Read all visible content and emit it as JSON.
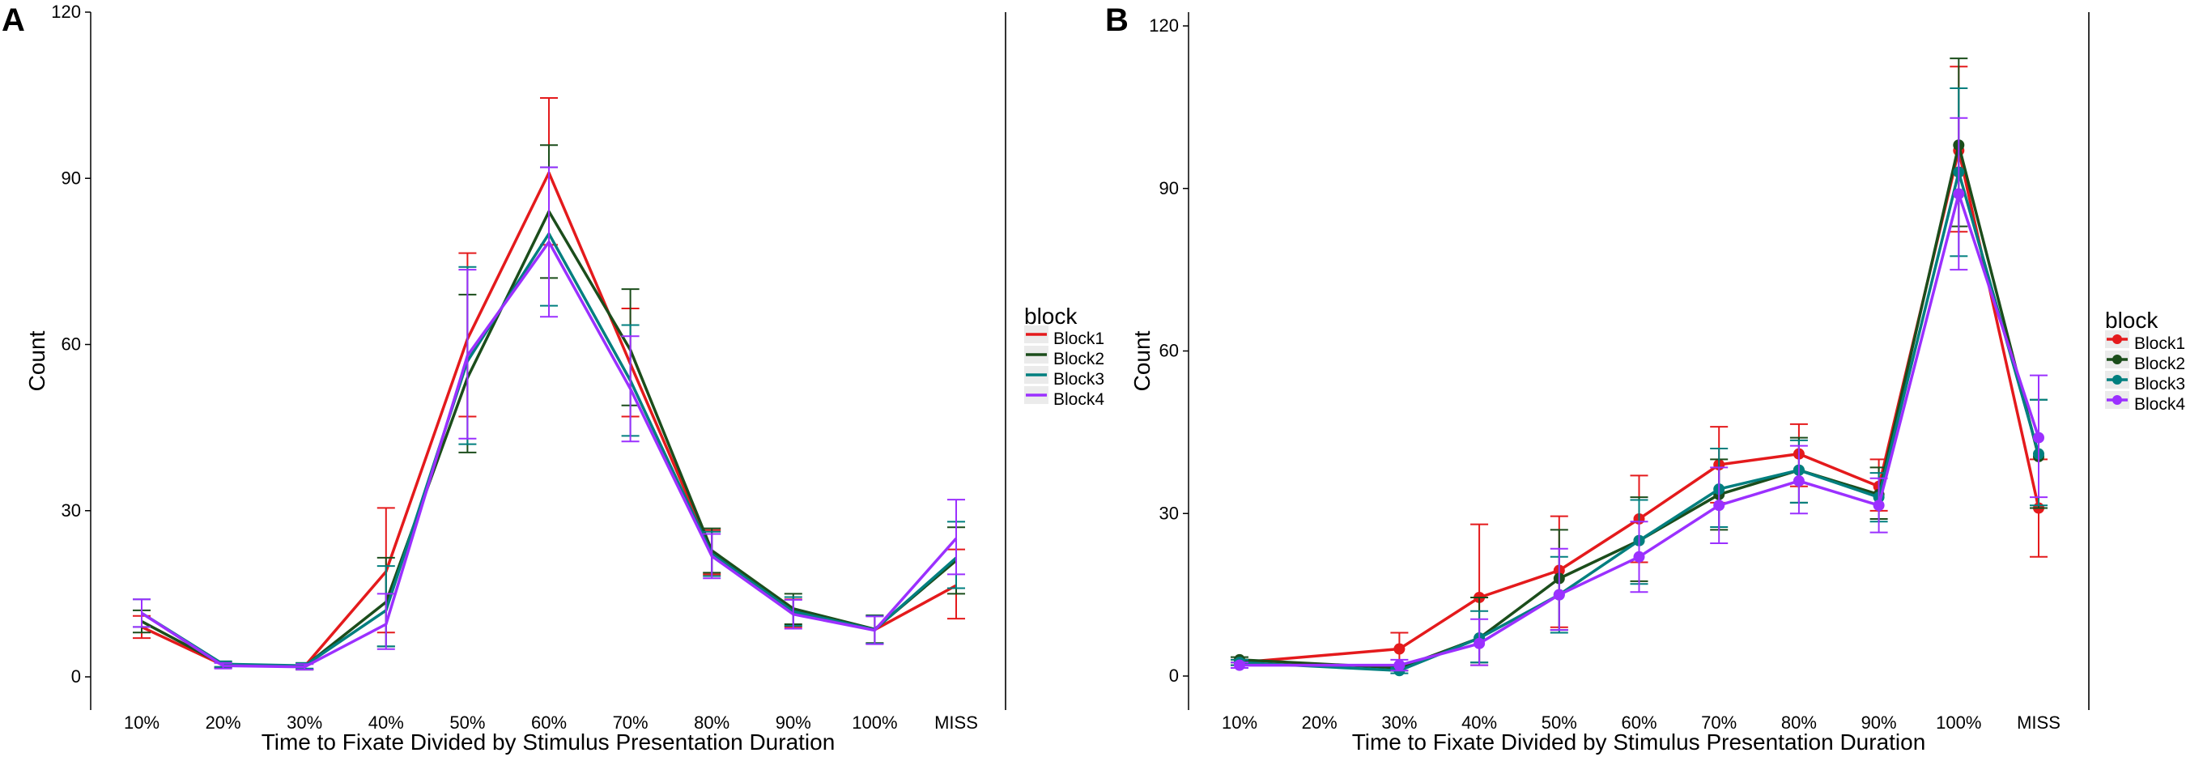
{
  "chart_data": [
    {
      "panel_label": "A",
      "type": "line",
      "markers": false,
      "title": "",
      "xlabel": "Time to Fixate Divided by Stimulus Presentation Duration",
      "ylabel": "Count",
      "ylim": [
        0,
        120
      ],
      "yticks": [
        0,
        30,
        60,
        90,
        120
      ],
      "categories": [
        "10%",
        "20%",
        "30%",
        "40%",
        "50%",
        "60%",
        "70%",
        "80%",
        "90%",
        "100%",
        "MISS"
      ],
      "legend_title": "block",
      "legend_position": "right",
      "series": [
        {
          "name": "Block1",
          "color": "#E41A1C",
          "values": [
            9.0,
            2.1,
            1.9,
            19.0,
            61.0,
            91.0,
            56.5,
            22.5,
            11.5,
            8.5,
            16.5
          ],
          "err_low": [
            7.0,
            1.7,
            1.4,
            8.0,
            47.0,
            78.0,
            47.0,
            18.5,
            9.0,
            6.0,
            10.5
          ],
          "err_high": [
            11.0,
            2.6,
            2.4,
            30.5,
            76.5,
            104.5,
            66.5,
            26.5,
            14.0,
            11.0,
            23.0
          ]
        },
        {
          "name": "Block2",
          "color": "#1B4D1B",
          "values": [
            10.0,
            2.2,
            1.9,
            13.5,
            54.0,
            84.0,
            59.0,
            22.8,
            12.3,
            8.6,
            21.0
          ],
          "err_low": [
            8.0,
            1.6,
            1.3,
            5.5,
            40.5,
            72.0,
            49.0,
            18.8,
            9.5,
            6.1,
            15.0
          ],
          "err_high": [
            12.0,
            2.8,
            2.5,
            21.5,
            69.0,
            96.0,
            70.0,
            26.8,
            15.0,
            11.1,
            27.0
          ]
        },
        {
          "name": "Block3",
          "color": "#007F7F",
          "values": [
            11.5,
            2.3,
            2.0,
            12.0,
            57.0,
            80.0,
            53.5,
            22.2,
            11.8,
            8.5,
            21.5
          ],
          "err_low": [
            9.0,
            1.8,
            1.5,
            5.5,
            42.0,
            67.0,
            43.5,
            18.2,
            9.2,
            6.0,
            16.0
          ],
          "err_high": [
            14.0,
            2.8,
            2.5,
            20.0,
            74.0,
            92.0,
            63.5,
            26.2,
            14.4,
            11.0,
            28.0
          ]
        },
        {
          "name": "Block4",
          "color": "#9B30FF",
          "values": [
            11.5,
            2.0,
            1.8,
            9.5,
            58.0,
            78.5,
            52.0,
            21.8,
            11.3,
            8.4,
            25.0
          ],
          "err_low": [
            9.0,
            1.5,
            1.3,
            5.0,
            43.0,
            65.0,
            42.5,
            17.8,
            8.7,
            5.9,
            18.5
          ],
          "err_high": [
            14.0,
            2.5,
            2.3,
            15.0,
            73.5,
            92.0,
            61.5,
            25.8,
            13.9,
            10.9,
            32.0
          ]
        }
      ]
    },
    {
      "panel_label": "B",
      "type": "line",
      "markers": true,
      "title": "",
      "xlabel": "Time to Fixate Divided by Stimulus Presentation Duration",
      "ylabel": "Count",
      "ylim": [
        0,
        120
      ],
      "yticks": [
        0,
        30,
        60,
        90,
        120
      ],
      "categories": [
        "10%",
        "20%",
        "30%",
        "40%",
        "50%",
        "60%",
        "70%",
        "80%",
        "90%",
        "100%",
        "MISS"
      ],
      "legend_title": "block",
      "legend_position": "right",
      "series": [
        {
          "name": "Block1",
          "color": "#E41A1C",
          "values": [
            2.5,
            null,
            5.0,
            14.5,
            19.5,
            29.0,
            39.0,
            41.0,
            35.0,
            97.0,
            31.0
          ],
          "err_low": [
            2.0,
            null,
            2.0,
            2.0,
            9.0,
            21.0,
            32.0,
            35.0,
            30.5,
            82.0,
            22.0
          ],
          "err_high": [
            3.0,
            null,
            8.0,
            28.0,
            29.5,
            37.0,
            46.0,
            46.5,
            40.0,
            112.5,
            40.0
          ]
        },
        {
          "name": "Block2",
          "color": "#1B4D1B",
          "values": [
            3.0,
            null,
            1.5,
            7.0,
            18.0,
            25.0,
            33.5,
            38.0,
            33.5,
            98.0,
            40.5
          ],
          "err_low": [
            2.5,
            null,
            1.0,
            2.5,
            8.5,
            17.5,
            27.0,
            32.0,
            29.0,
            83.0,
            31.0
          ],
          "err_high": [
            3.5,
            null,
            2.0,
            14.5,
            27.0,
            33.0,
            40.0,
            44.0,
            38.5,
            114.0,
            51.0
          ]
        },
        {
          "name": "Block3",
          "color": "#007F7F",
          "values": [
            2.5,
            null,
            1.0,
            7.0,
            15.0,
            25.0,
            34.5,
            38.0,
            33.0,
            93.0,
            41.0
          ],
          "err_low": [
            2.0,
            null,
            0.5,
            2.5,
            8.0,
            17.0,
            27.5,
            32.0,
            28.5,
            77.5,
            31.5
          ],
          "err_high": [
            3.0,
            null,
            1.5,
            12.0,
            22.0,
            32.5,
            42.0,
            43.5,
            37.5,
            108.5,
            51.0
          ]
        },
        {
          "name": "Block4",
          "color": "#9B30FF",
          "values": [
            2.0,
            null,
            2.0,
            6.0,
            15.0,
            22.0,
            31.5,
            36.0,
            31.5,
            89.0,
            44.0
          ],
          "err_low": [
            1.5,
            null,
            1.0,
            2.0,
            8.5,
            15.5,
            24.5,
            30.0,
            26.5,
            75.0,
            33.0
          ],
          "err_high": [
            2.5,
            null,
            3.0,
            10.5,
            23.5,
            28.5,
            38.5,
            42.5,
            36.5,
            103.0,
            55.5
          ]
        }
      ]
    }
  ]
}
